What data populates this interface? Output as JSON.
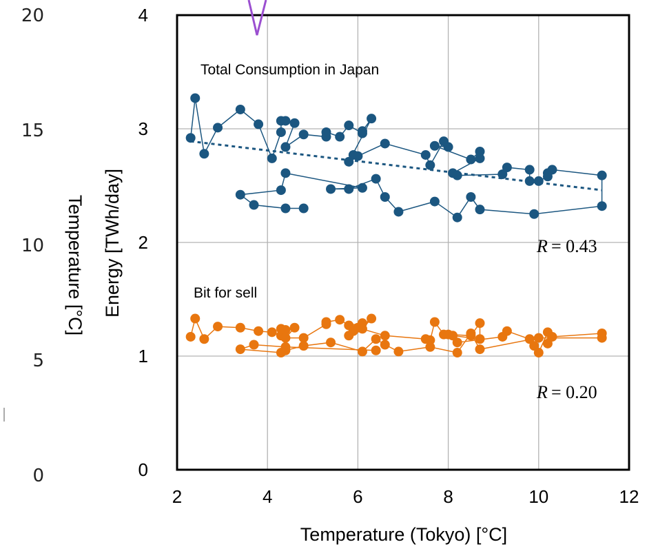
{
  "chart_data": {
    "type": "scatter",
    "xlabel": "Temperature (Tokyo) [°C]",
    "ylabel": "Energy [TWh/day]",
    "y2label": "Temperature [°C]",
    "xlim": [
      2,
      12
    ],
    "ylim": [
      0,
      4
    ],
    "y2lim": [
      0,
      20
    ],
    "x_ticks": [
      "2",
      "4",
      "6",
      "8",
      "10",
      "12"
    ],
    "y_ticks": [
      "0",
      "1",
      "2",
      "3",
      "4"
    ],
    "y2_ticks": [
      "0",
      "5",
      "10",
      "15",
      "20"
    ],
    "grid": true,
    "series": [
      {
        "name": "Total Consumption in Japan",
        "color": "#1b5680",
        "marker": "circle",
        "connected": true,
        "points": [
          [
            2.3,
            2.92
          ],
          [
            2.4,
            3.27
          ],
          [
            2.6,
            2.78
          ],
          [
            2.9,
            3.01
          ],
          [
            3.4,
            3.17
          ],
          [
            3.8,
            3.04
          ],
          [
            4.1,
            2.74
          ],
          [
            4.3,
            2.97
          ],
          [
            4.3,
            3.07
          ],
          [
            4.4,
            3.07
          ],
          [
            4.6,
            3.05
          ],
          [
            4.4,
            2.84
          ],
          [
            4.8,
            2.95
          ],
          [
            5.3,
            2.93
          ],
          [
            5.3,
            2.97
          ],
          [
            5.6,
            2.93
          ],
          [
            5.8,
            3.03
          ],
          [
            6.1,
            2.96
          ],
          [
            6.1,
            2.98
          ],
          [
            6.3,
            3.09
          ],
          [
            5.8,
            2.71
          ],
          [
            5.9,
            2.77
          ],
          [
            6.0,
            2.76
          ],
          [
            6.6,
            2.87
          ],
          [
            7.5,
            2.77
          ],
          [
            7.6,
            2.68
          ],
          [
            7.9,
            2.89
          ],
          [
            8.0,
            2.84
          ],
          [
            7.7,
            2.85
          ],
          [
            8.5,
            2.73
          ],
          [
            8.7,
            2.8
          ],
          [
            8.7,
            2.74
          ],
          [
            8.1,
            2.61
          ],
          [
            8.2,
            2.59
          ],
          [
            9.2,
            2.6
          ],
          [
            9.3,
            2.66
          ],
          [
            9.8,
            2.64
          ],
          [
            9.8,
            2.54
          ],
          [
            10.0,
            2.54
          ],
          [
            10.2,
            2.58
          ],
          [
            10.2,
            2.61
          ],
          [
            10.3,
            2.64
          ],
          [
            11.4,
            2.59
          ],
          [
            11.4,
            2.32
          ],
          [
            9.9,
            2.25
          ],
          [
            8.7,
            2.29
          ],
          [
            8.5,
            2.4
          ],
          [
            8.2,
            2.22
          ],
          [
            7.7,
            2.36
          ],
          [
            6.9,
            2.27
          ],
          [
            6.6,
            2.4
          ],
          [
            6.4,
            2.56
          ],
          [
            5.8,
            2.47
          ],
          [
            5.4,
            2.47
          ],
          [
            6.1,
            2.48
          ],
          [
            4.4,
            2.61
          ],
          [
            4.3,
            2.46
          ],
          [
            3.4,
            2.42
          ],
          [
            3.7,
            2.33
          ],
          [
            4.4,
            2.3
          ],
          [
            4.8,
            2.3
          ]
        ],
        "trendline": {
          "style": "dashed",
          "from": [
            2.3,
            2.89
          ],
          "to": [
            11.4,
            2.46
          ]
        },
        "r_label": "= 0.43"
      },
      {
        "name": "Bit for sell",
        "color": "#e8760f",
        "marker": "circle",
        "connected": true,
        "points": [
          [
            2.3,
            1.17
          ],
          [
            2.4,
            1.33
          ],
          [
            2.6,
            1.15
          ],
          [
            2.9,
            1.26
          ],
          [
            3.4,
            1.25
          ],
          [
            3.8,
            1.22
          ],
          [
            4.1,
            1.21
          ],
          [
            4.3,
            1.18
          ],
          [
            4.3,
            1.24
          ],
          [
            4.4,
            1.23
          ],
          [
            4.6,
            1.25
          ],
          [
            4.4,
            1.16
          ],
          [
            4.8,
            1.16
          ],
          [
            5.3,
            1.28
          ],
          [
            5.3,
            1.3
          ],
          [
            5.6,
            1.32
          ],
          [
            5.8,
            1.27
          ],
          [
            6.1,
            1.29
          ],
          [
            6.1,
            1.24
          ],
          [
            6.3,
            1.33
          ],
          [
            5.8,
            1.18
          ],
          [
            5.9,
            1.22
          ],
          [
            6.0,
            1.25
          ],
          [
            6.6,
            1.18
          ],
          [
            7.5,
            1.15
          ],
          [
            7.6,
            1.14
          ],
          [
            7.7,
            1.3
          ],
          [
            7.9,
            1.19
          ],
          [
            8.0,
            1.19
          ],
          [
            8.5,
            1.18
          ],
          [
            8.7,
            1.29
          ],
          [
            8.7,
            1.15
          ],
          [
            8.1,
            1.18
          ],
          [
            8.2,
            1.12
          ],
          [
            9.2,
            1.17
          ],
          [
            9.3,
            1.22
          ],
          [
            9.8,
            1.15
          ],
          [
            9.9,
            1.09
          ],
          [
            10.0,
            1.03
          ],
          [
            10.2,
            1.21
          ],
          [
            10.2,
            1.11
          ],
          [
            10.3,
            1.17
          ],
          [
            11.4,
            1.2
          ],
          [
            11.4,
            1.16
          ],
          [
            10.0,
            1.16
          ],
          [
            8.7,
            1.06
          ],
          [
            8.5,
            1.2
          ],
          [
            8.2,
            1.03
          ],
          [
            7.6,
            1.08
          ],
          [
            6.9,
            1.04
          ],
          [
            6.6,
            1.1
          ],
          [
            6.4,
            1.15
          ],
          [
            6.1,
            1.04
          ],
          [
            5.4,
            1.12
          ],
          [
            4.8,
            1.09
          ],
          [
            4.4,
            1.05
          ],
          [
            4.3,
            1.03
          ],
          [
            3.4,
            1.06
          ],
          [
            3.7,
            1.1
          ],
          [
            4.4,
            1.08
          ],
          [
            6.4,
            1.05
          ]
        ],
        "r_label": "= 0.20"
      }
    ],
    "r_symbol": "R"
  }
}
